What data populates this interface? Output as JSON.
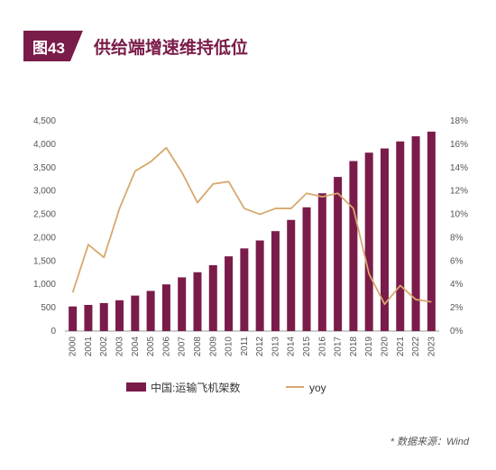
{
  "header": {
    "figure_label": "图43",
    "title": "供给端增速维持低位"
  },
  "chart_data": {
    "type": "bar+line",
    "categories": [
      "2000",
      "2001",
      "2002",
      "2003",
      "2004",
      "2005",
      "2006",
      "2007",
      "2008",
      "2009",
      "2010",
      "2011",
      "2012",
      "2013",
      "2014",
      "2015",
      "2016",
      "2017",
      "2018",
      "2019",
      "2020",
      "2021",
      "2022",
      "2023"
    ],
    "series": [
      {
        "name": "中国:运输飞机架数",
        "type": "bar",
        "axis": "left",
        "color": "#7a1c49",
        "values": [
          527,
          560,
          600,
          660,
          760,
          860,
          1000,
          1150,
          1260,
          1410,
          1600,
          1770,
          1940,
          2140,
          2380,
          2650,
          2950,
          3300,
          3640,
          3820,
          3910,
          4060,
          4170,
          4270
        ]
      },
      {
        "name": "yoy",
        "type": "line",
        "axis": "right",
        "color": "#d7a86e",
        "values": [
          3.3,
          7.4,
          6.3,
          10.5,
          13.7,
          14.5,
          15.7,
          13.6,
          11.0,
          12.6,
          12.8,
          10.5,
          10.0,
          10.5,
          10.5,
          11.8,
          11.5,
          11.8,
          10.5,
          4.9,
          2.3,
          3.9,
          2.7,
          2.5
        ]
      }
    ],
    "y_left": {
      "min": 0,
      "max": 4500,
      "ticks": [
        "0",
        "500",
        "1,000",
        "1,500",
        "2,000",
        "2,500",
        "3,000",
        "3,500",
        "4,000",
        "4,500"
      ]
    },
    "y_right": {
      "min": 0,
      "max": 18,
      "ticks": [
        "0%",
        "2%",
        "4%",
        "6%",
        "8%",
        "10%",
        "12%",
        "14%",
        "16%",
        "18%"
      ]
    },
    "grid": false,
    "legend_position": "bottom"
  },
  "source": "* 数据来源：Wind"
}
